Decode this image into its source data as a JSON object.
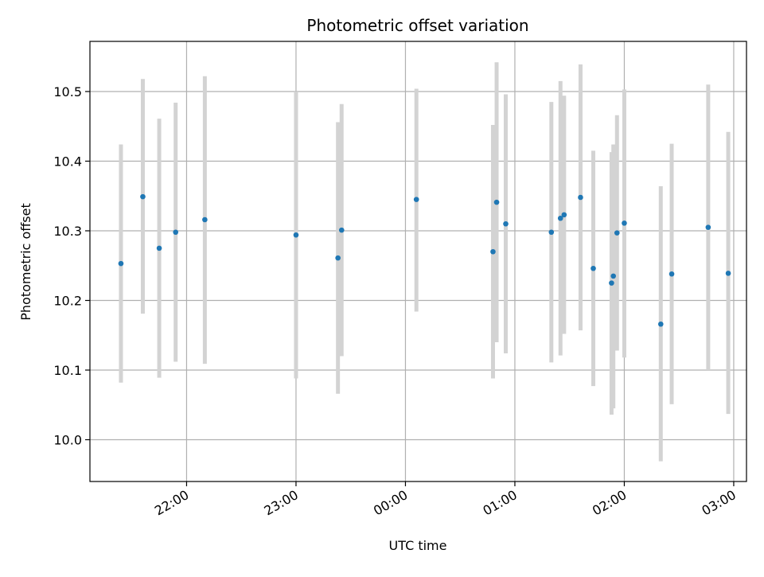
{
  "chart_data": {
    "type": "scatter",
    "title": "Photometric offset variation",
    "xlabel": "UTC time",
    "ylabel": "Photometric offset",
    "x_unit": "UTC",
    "xlim": [
      "21:07",
      "03:07"
    ],
    "ylim": [
      9.94,
      10.572
    ],
    "x_ticks": [
      "22:00",
      "23:00",
      "00:00",
      "01:00",
      "02:00",
      "03:00"
    ],
    "y_ticks": [
      "10.0",
      "10.1",
      "10.2",
      "10.3",
      "10.4",
      "10.5"
    ],
    "grid": true,
    "colors": {
      "point": "#1f77b4",
      "errorbar": "#d3d3d3",
      "grid": "#b0b0b0"
    },
    "points": [
      {
        "x": "21:24",
        "y": 10.253,
        "ylow": 10.082,
        "yhigh": 10.424
      },
      {
        "x": "21:36",
        "y": 10.349,
        "ylow": 10.181,
        "yhigh": 10.518
      },
      {
        "x": "21:45",
        "y": 10.275,
        "ylow": 10.089,
        "yhigh": 10.461
      },
      {
        "x": "21:54",
        "y": 10.298,
        "ylow": 10.112,
        "yhigh": 10.484
      },
      {
        "x": "22:10",
        "y": 10.316,
        "ylow": 10.109,
        "yhigh": 10.522
      },
      {
        "x": "23:00",
        "y": 10.294,
        "ylow": 10.088,
        "yhigh": 10.5
      },
      {
        "x": "23:23",
        "y": 10.261,
        "ylow": 10.066,
        "yhigh": 10.456
      },
      {
        "x": "23:25",
        "y": 10.301,
        "ylow": 10.12,
        "yhigh": 10.482
      },
      {
        "x": "00:06",
        "y": 10.345,
        "ylow": 10.184,
        "yhigh": 10.504
      },
      {
        "x": "00:48",
        "y": 10.27,
        "ylow": 10.088,
        "yhigh": 10.452
      },
      {
        "x": "00:50",
        "y": 10.341,
        "ylow": 10.14,
        "yhigh": 10.542
      },
      {
        "x": "00:55",
        "y": 10.31,
        "ylow": 10.124,
        "yhigh": 10.496
      },
      {
        "x": "01:20",
        "y": 10.298,
        "ylow": 10.111,
        "yhigh": 10.485
      },
      {
        "x": "01:25",
        "y": 10.318,
        "ylow": 10.121,
        "yhigh": 10.515
      },
      {
        "x": "01:27",
        "y": 10.323,
        "ylow": 10.152,
        "yhigh": 10.494
      },
      {
        "x": "01:36",
        "y": 10.348,
        "ylow": 10.157,
        "yhigh": 10.539
      },
      {
        "x": "01:43",
        "y": 10.246,
        "ylow": 10.077,
        "yhigh": 10.415
      },
      {
        "x": "01:53",
        "y": 10.225,
        "ylow": 10.036,
        "yhigh": 10.413
      },
      {
        "x": "01:54",
        "y": 10.235,
        "ylow": 10.045,
        "yhigh": 10.424
      },
      {
        "x": "01:56",
        "y": 10.297,
        "ylow": 10.128,
        "yhigh": 10.466
      },
      {
        "x": "02:00",
        "y": 10.311,
        "ylow": 10.118,
        "yhigh": 10.503
      },
      {
        "x": "02:20",
        "y": 10.166,
        "ylow": 9.969,
        "yhigh": 10.364
      },
      {
        "x": "02:26",
        "y": 10.238,
        "ylow": 10.051,
        "yhigh": 10.425
      },
      {
        "x": "02:46",
        "y": 10.305,
        "ylow": 10.1,
        "yhigh": 10.51
      },
      {
        "x": "02:57",
        "y": 10.239,
        "ylow": 10.037,
        "yhigh": 10.442
      }
    ]
  }
}
